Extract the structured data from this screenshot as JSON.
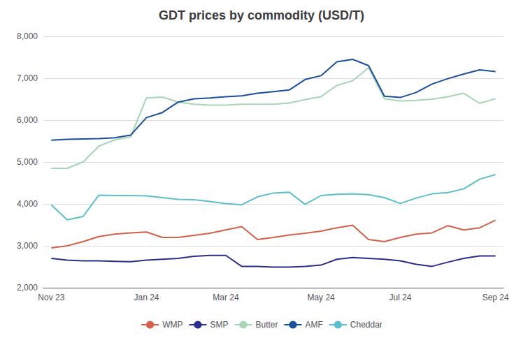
{
  "chart_data": {
    "type": "line",
    "title": "GDT prices by commodity (USD/T)",
    "categories": [
      "Nov 23",
      null,
      null,
      null,
      null,
      null,
      "Jan 24",
      null,
      null,
      null,
      null,
      "Mar 24",
      null,
      null,
      null,
      null,
      null,
      "May 24",
      null,
      null,
      null,
      null,
      "Jul 24",
      null,
      null,
      null,
      null,
      null,
      "Sep 24"
    ],
    "series": [
      {
        "name": "WMP",
        "color": "#D4614A",
        "values": [
          2950,
          3000,
          3100,
          3220,
          3280,
          3310,
          3330,
          3200,
          3200,
          3250,
          3300,
          3380,
          3460,
          3150,
          3200,
          3260,
          3300,
          3350,
          3430,
          3490,
          3150,
          3100,
          3200,
          3280,
          3310,
          3480,
          3380,
          3430,
          3610
        ]
      },
      {
        "name": "SMP",
        "color": "#2B2F8C",
        "values": [
          2700,
          2660,
          2640,
          2640,
          2630,
          2620,
          2660,
          2680,
          2700,
          2750,
          2770,
          2770,
          2510,
          2510,
          2490,
          2490,
          2510,
          2540,
          2680,
          2720,
          2700,
          2680,
          2640,
          2560,
          2510,
          2610,
          2700,
          2760,
          2760
        ]
      },
      {
        "name": "Butter",
        "color": "#A8D5B5",
        "values": [
          4850,
          4850,
          5000,
          5380,
          5530,
          5600,
          6530,
          6550,
          6430,
          6380,
          6360,
          6360,
          6380,
          6380,
          6380,
          6410,
          6490,
          6560,
          6830,
          6940,
          7250,
          6510,
          6460,
          6470,
          6500,
          6560,
          6640,
          6400,
          6510
        ]
      },
      {
        "name": "AMF",
        "color": "#1B4E9B",
        "values": [
          5520,
          5540,
          5550,
          5560,
          5580,
          5640,
          6060,
          6180,
          6430,
          6510,
          6530,
          6560,
          6580,
          6640,
          6680,
          6720,
          6970,
          7060,
          7390,
          7450,
          7300,
          6570,
          6540,
          6660,
          6860,
          6990,
          7100,
          7200,
          7160
        ]
      },
      {
        "name": "Cheddar",
        "color": "#5BBFCC",
        "values": [
          3980,
          3620,
          3700,
          4210,
          4200,
          4200,
          4190,
          4150,
          4110,
          4100,
          4060,
          4010,
          3980,
          4170,
          4260,
          4280,
          3990,
          4200,
          4230,
          4240,
          4220,
          4150,
          4010,
          4140,
          4240,
          4270,
          4360,
          4590,
          4700
        ]
      }
    ],
    "ylim": [
      2000,
      8000
    ],
    "yticks": [
      {
        "value": 2000,
        "label": "2,000"
      },
      {
        "value": 3000,
        "label": "3,000"
      },
      {
        "value": 4000,
        "label": "4,000"
      },
      {
        "value": 5000,
        "label": "5,000"
      },
      {
        "value": 6000,
        "label": "6,000"
      },
      {
        "value": 7000,
        "label": "7,000"
      },
      {
        "value": 8000,
        "label": "8,000"
      }
    ],
    "grid": true,
    "legend": "bottom"
  }
}
